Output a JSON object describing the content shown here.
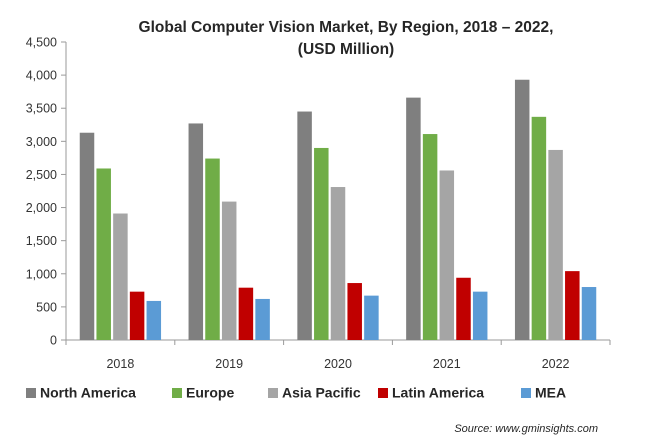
{
  "chart_data": {
    "type": "bar",
    "title": "Global Computer Vision Market, By Region, 2018 – 2022,",
    "subtitle": "(USD Million)",
    "xlabel": "",
    "ylabel": "",
    "categories": [
      "2018",
      "2019",
      "2020",
      "2021",
      "2022"
    ],
    "ylim": [
      0,
      4500
    ],
    "yticks": [
      "0",
      "500",
      "1,000",
      "1,500",
      "2,000",
      "2,500",
      "3,000",
      "3,500",
      "4,000",
      "4,500"
    ],
    "ytick_values": [
      0,
      500,
      1000,
      1500,
      2000,
      2500,
      3000,
      3500,
      4000,
      4500
    ],
    "grid": false,
    "legend_position": "bottom",
    "series": [
      {
        "name": "North America",
        "color": "#7f7f7f",
        "values": [
          3130,
          3270,
          3450,
          3660,
          3930
        ]
      },
      {
        "name": "Europe",
        "color": "#70ad47",
        "values": [
          2590,
          2740,
          2900,
          3110,
          3370
        ]
      },
      {
        "name": "Asia Pacific",
        "color": "#a5a5a5",
        "values": [
          1910,
          2090,
          2310,
          2560,
          2870
        ]
      },
      {
        "name": "Latin America",
        "color": "#c00000",
        "values": [
          730,
          790,
          860,
          940,
          1040
        ]
      },
      {
        "name": "MEA",
        "color": "#5b9bd5",
        "values": [
          590,
          620,
          670,
          730,
          800
        ]
      }
    ]
  },
  "source_text": "Source: www.gminsights.com"
}
